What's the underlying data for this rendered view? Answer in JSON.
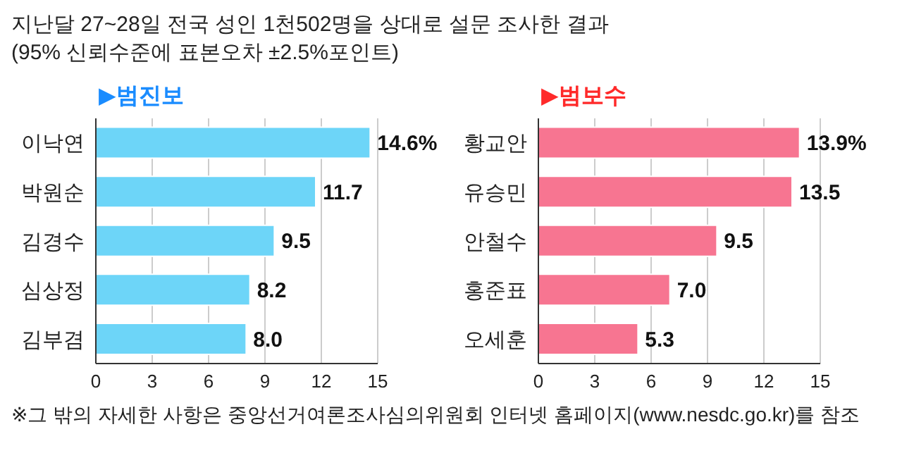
{
  "chart_data": [
    {
      "type": "other",
      "title": "지난달 27~28일 전국 성인 1천502명을 상대로 설문 조사한 결과",
      "subtitle": "(95% 신뢰수준에 표본오차 ±2.5%포인트)",
      "annotations": [
        "※그 밖의 자세한 사항은 중앙선거여론조사심의위원회 인터넷 홈페이지(www.nesdc.go.kr)를 참조"
      ]
    },
    {
      "type": "bar",
      "orientation": "horizontal",
      "title": "▶범진보",
      "categories": [
        "이낙연",
        "박원순",
        "김경수",
        "심상정",
        "김부겸"
      ],
      "values": [
        14.6,
        11.7,
        9.5,
        8.2,
        8.0
      ],
      "color": "#6dd5f8",
      "value_labels": [
        "14.6%",
        "11.7",
        "9.5",
        "8.2",
        "8.0"
      ],
      "xlim": [
        0,
        15
      ],
      "xticks": [
        0,
        3,
        6,
        9,
        12,
        15
      ],
      "grid": "x"
    },
    {
      "type": "bar",
      "orientation": "horizontal",
      "title": "▶범보수",
      "categories": [
        "황교안",
        "유승민",
        "안철수",
        "홍준표",
        "오세훈"
      ],
      "values": [
        13.9,
        13.5,
        9.5,
        7.0,
        5.3
      ],
      "color": "#f77591",
      "value_labels": [
        "13.9%",
        "13.5",
        "9.5",
        "7.0",
        "5.3"
      ],
      "xlim": [
        0,
        15
      ],
      "xticks": [
        0,
        3,
        6,
        9,
        12,
        15
      ],
      "grid": "x"
    }
  ]
}
